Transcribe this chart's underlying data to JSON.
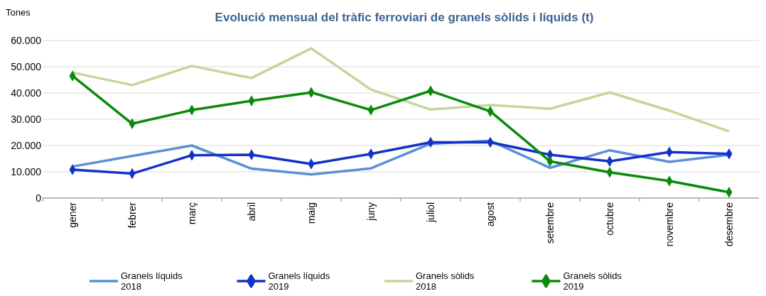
{
  "chart_data": {
    "type": "line",
    "title": "Evolució mensual del tràfic ferroviari de granels sòlids i líquids (t)",
    "ylabel": "Tones",
    "categories": [
      "gener",
      "febrer",
      "març",
      "abril",
      "maig",
      "juny",
      "juliol",
      "agost",
      "setembre",
      "octubre",
      "novembre",
      "desembre"
    ],
    "series": [
      {
        "name": "Granels líquids 2018",
        "color": "#5b8fd6",
        "marker": "none",
        "values": [
          12000,
          16000,
          20000,
          11200,
          9000,
          11300,
          20700,
          21800,
          11500,
          18200,
          13800,
          16500
        ]
      },
      {
        "name": "Granels líquids 2019",
        "color": "#1432c8",
        "marker": "diamond",
        "values": [
          10800,
          9300,
          16300,
          16500,
          13000,
          16800,
          21200,
          21200,
          16500,
          14000,
          17500,
          16800
        ]
      },
      {
        "name": "Granels sòlids 2018",
        "color": "#c3d69b",
        "marker": "none",
        "values": [
          47800,
          43000,
          50300,
          45700,
          57000,
          41300,
          33700,
          35400,
          34000,
          40200,
          33300,
          25400
        ]
      },
      {
        "name": "Granels sòlids 2019",
        "color": "#0a8a0a",
        "marker": "diamond",
        "values": [
          46500,
          28300,
          33500,
          37000,
          40200,
          33500,
          40800,
          33000,
          14000,
          9800,
          6500,
          2200
        ]
      }
    ],
    "ylim": [
      0,
      60000
    ],
    "yticks": [
      0,
      {
        "value": 10000,
        "label": "10.000"
      },
      {
        "value": 20000,
        "label": "20.000"
      },
      {
        "value": 30000,
        "label": "30.000"
      },
      {
        "value": 40000,
        "label": "40.000"
      },
      {
        "value": 50000,
        "label": "50.000"
      },
      {
        "value": 60000,
        "label": "60.000"
      }
    ],
    "grid": "y",
    "legend": "bottom",
    "line_style": "solid"
  }
}
